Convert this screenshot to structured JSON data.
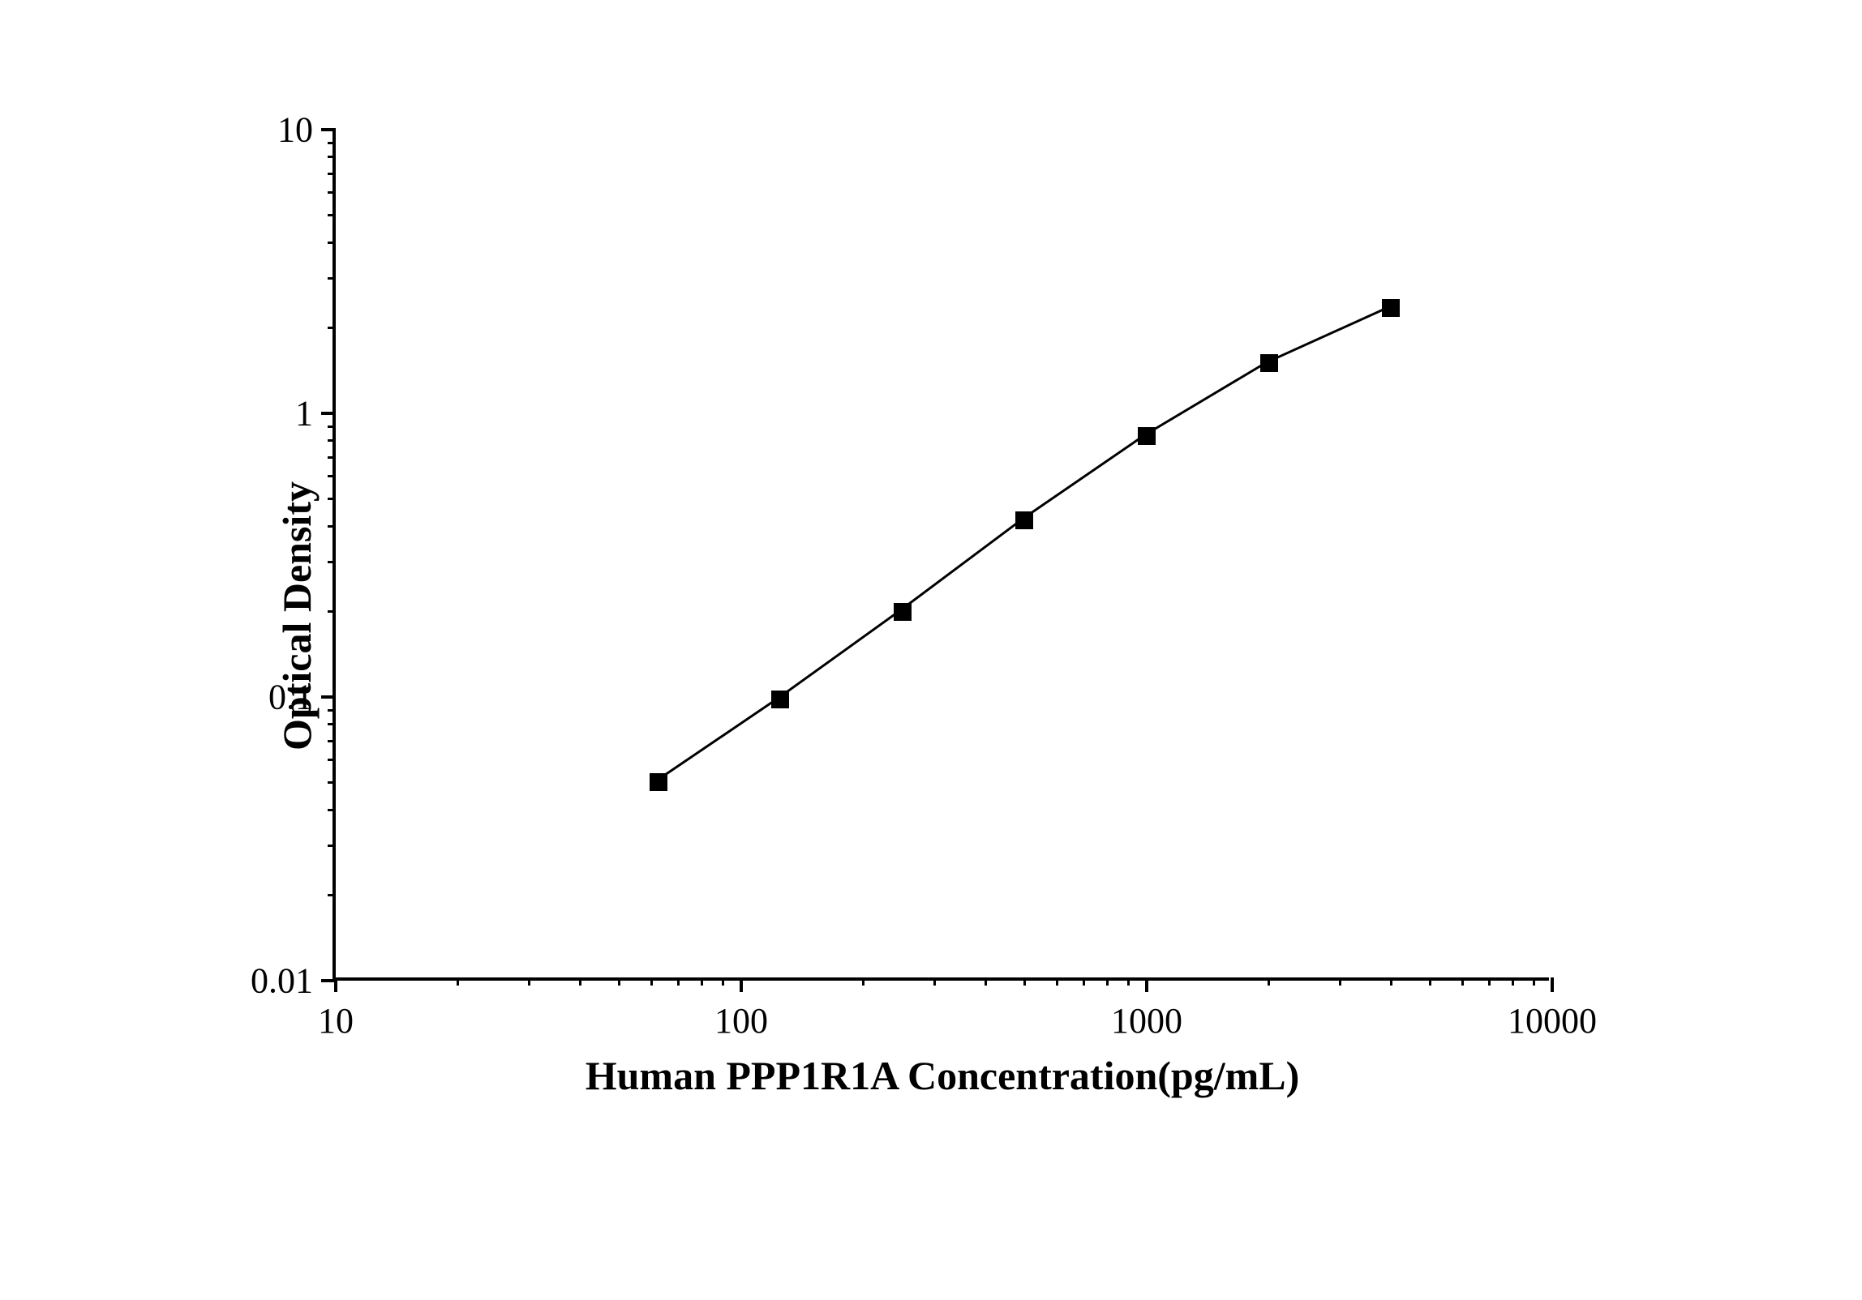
{
  "chart": {
    "type": "line",
    "background_color": "#ffffff",
    "line_color": "#000000",
    "marker_color": "#000000",
    "marker_shape": "square",
    "marker_size": 22,
    "line_width": 3,
    "axis_color": "#000000",
    "axis_width": 4,
    "x_axis": {
      "label": "Human PPP1R1A Concentration(pg/mL)",
      "label_fontsize": 50,
      "label_fontweight": "bold",
      "scale": "log",
      "min": 10,
      "max": 10000,
      "major_ticks": [
        10,
        100,
        1000,
        10000
      ],
      "tick_labels": [
        "10",
        "100",
        "1000",
        "10000"
      ],
      "tick_fontsize": 44
    },
    "y_axis": {
      "label": "Optical Density",
      "label_fontsize": 50,
      "label_fontweight": "bold",
      "scale": "log",
      "min": 0.01,
      "max": 10,
      "major_ticks": [
        0.01,
        0.1,
        1,
        10
      ],
      "tick_labels": [
        "0.01",
        "0.1",
        "1",
        "10"
      ],
      "tick_fontsize": 44
    },
    "data": {
      "x": [
        62.5,
        125,
        250,
        500,
        1000,
        2000,
        4000
      ],
      "y": [
        0.05,
        0.098,
        0.2,
        0.42,
        0.83,
        1.5,
        2.35
      ]
    }
  }
}
